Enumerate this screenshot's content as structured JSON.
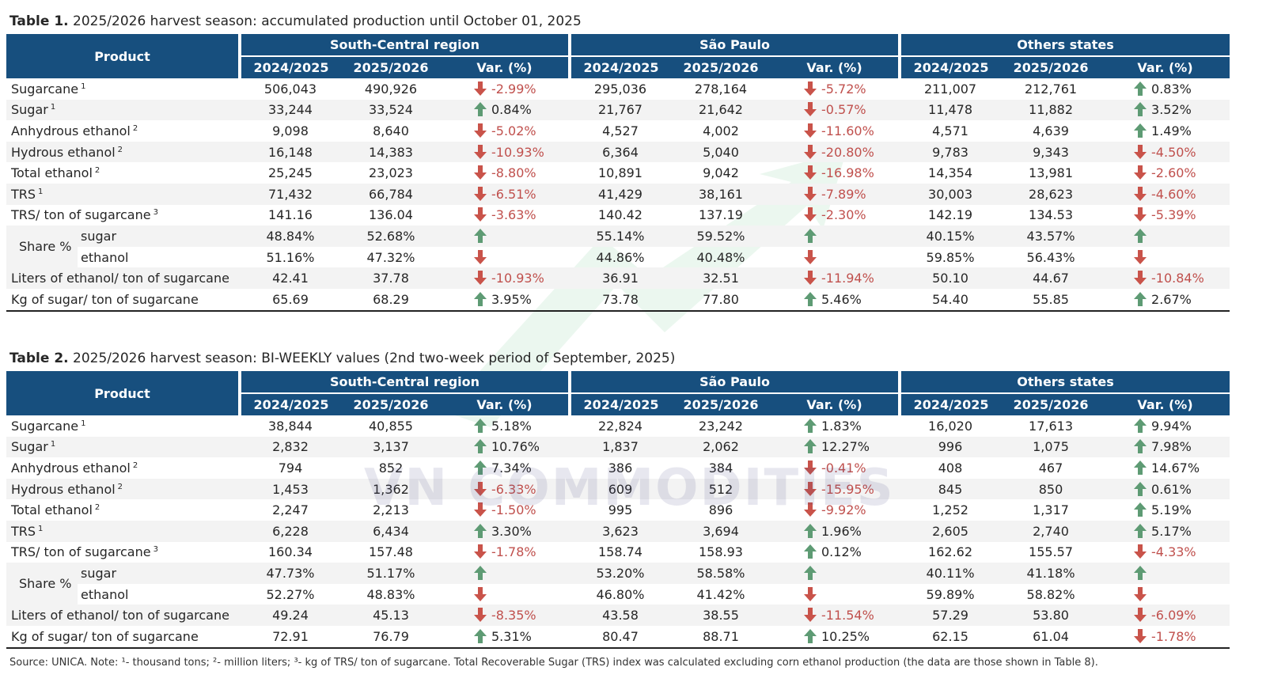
{
  "tables": [
    {
      "number": "Table 1.",
      "title": "2025/2026 harvest season: accumulated production until October 01, 2025",
      "header": {
        "product": "Product",
        "groups": [
          "South-Central region",
          "São Paulo",
          "Others states"
        ],
        "columns": [
          "2024/2025",
          "2025/2026",
          "Var. (%)"
        ]
      },
      "rows": [
        {
          "label": "Sugarcane",
          "sup": "1",
          "groups": [
            {
              "values": [
                "506,043",
                "490,926"
              ],
              "var": "-2.99%",
              "trend": "down"
            },
            {
              "values": [
                "295,036",
                "278,164"
              ],
              "var": "-5.72%",
              "trend": "down"
            },
            {
              "values": [
                "211,007",
                "212,761"
              ],
              "var": "0.83%",
              "trend": "up"
            }
          ]
        },
        {
          "label": "Sugar",
          "sup": "1",
          "groups": [
            {
              "values": [
                "33,244",
                "33,524"
              ],
              "var": "0.84%",
              "trend": "up"
            },
            {
              "values": [
                "21,767",
                "21,642"
              ],
              "var": "-0.57%",
              "trend": "down"
            },
            {
              "values": [
                "11,478",
                "11,882"
              ],
              "var": "3.52%",
              "trend": "up"
            }
          ]
        },
        {
          "label": "Anhydrous ethanol",
          "sup": "2",
          "groups": [
            {
              "values": [
                "9,098",
                "8,640"
              ],
              "var": "-5.02%",
              "trend": "down"
            },
            {
              "values": [
                "4,527",
                "4,002"
              ],
              "var": "-11.60%",
              "trend": "down"
            },
            {
              "values": [
                "4,571",
                "4,639"
              ],
              "var": "1.49%",
              "trend": "up"
            }
          ]
        },
        {
          "label": "Hydrous ethanol",
          "sup": "2",
          "groups": [
            {
              "values": [
                "16,148",
                "14,383"
              ],
              "var": "-10.93%",
              "trend": "down"
            },
            {
              "values": [
                "6,364",
                "5,040"
              ],
              "var": "-20.80%",
              "trend": "down"
            },
            {
              "values": [
                "9,783",
                "9,343"
              ],
              "var": "-4.50%",
              "trend": "down"
            }
          ]
        },
        {
          "label": "Total ethanol",
          "sup": "2",
          "groups": [
            {
              "values": [
                "25,245",
                "23,023"
              ],
              "var": "-8.80%",
              "trend": "down"
            },
            {
              "values": [
                "10,891",
                "9,042"
              ],
              "var": "-16.98%",
              "trend": "down"
            },
            {
              "values": [
                "14,354",
                "13,981"
              ],
              "var": "-2.60%",
              "trend": "down"
            }
          ]
        },
        {
          "label": "TRS",
          "sup": "1",
          "groups": [
            {
              "values": [
                "71,432",
                "66,784"
              ],
              "var": "-6.51%",
              "trend": "down"
            },
            {
              "values": [
                "41,429",
                "38,161"
              ],
              "var": "-7.89%",
              "trend": "down"
            },
            {
              "values": [
                "30,003",
                "28,623"
              ],
              "var": "-4.60%",
              "trend": "down"
            }
          ]
        },
        {
          "label": "TRS/ ton of sugarcane",
          "sup": "3",
          "groups": [
            {
              "values": [
                "141.16",
                "136.04"
              ],
              "var": "-3.63%",
              "trend": "down"
            },
            {
              "values": [
                "140.42",
                "137.19"
              ],
              "var": "-2.30%",
              "trend": "down"
            },
            {
              "values": [
                "142.19",
                "134.53"
              ],
              "var": "-5.39%",
              "trend": "down"
            }
          ]
        },
        {
          "label": "Share %",
          "sub": [
            {
              "label": "sugar",
              "groups": [
                {
                  "values": [
                    "48.84%",
                    "52.68%"
                  ],
                  "trend": "up"
                },
                {
                  "values": [
                    "55.14%",
                    "59.52%"
                  ],
                  "trend": "up"
                },
                {
                  "values": [
                    "40.15%",
                    "43.57%"
                  ],
                  "trend": "up"
                }
              ]
            },
            {
              "label": "ethanol",
              "groups": [
                {
                  "values": [
                    "51.16%",
                    "47.32%"
                  ],
                  "trend": "down"
                },
                {
                  "values": [
                    "44.86%",
                    "40.48%"
                  ],
                  "trend": "down"
                },
                {
                  "values": [
                    "59.85%",
                    "56.43%"
                  ],
                  "trend": "down"
                }
              ]
            }
          ]
        },
        {
          "label": "Liters of ethanol/ ton of sugarcane",
          "groups": [
            {
              "values": [
                "42.41",
                "37.78"
              ],
              "var": "-10.93%",
              "trend": "down"
            },
            {
              "values": [
                "36.91",
                "32.51"
              ],
              "var": "-11.94%",
              "trend": "down"
            },
            {
              "values": [
                "50.10",
                "44.67"
              ],
              "var": "-10.84%",
              "trend": "down"
            }
          ]
        },
        {
          "label": "Kg of sugar/ ton of sugarcane",
          "groups": [
            {
              "values": [
                "65.69",
                "68.29"
              ],
              "var": "3.95%",
              "trend": "up"
            },
            {
              "values": [
                "73.78",
                "77.80"
              ],
              "var": "5.46%",
              "trend": "up"
            },
            {
              "values": [
                "54.40",
                "55.85"
              ],
              "var": "2.67%",
              "trend": "up"
            }
          ]
        }
      ]
    },
    {
      "number": "Table 2.",
      "title": "2025/2026 harvest season: BI-WEEKLY values (2nd two-week period of September, 2025)",
      "header": {
        "product": "Product",
        "groups": [
          "South-Central region",
          "São Paulo",
          "Others states"
        ],
        "columns": [
          "2024/2025",
          "2025/2026",
          "Var. (%)"
        ]
      },
      "rows": [
        {
          "label": "Sugarcane",
          "sup": "1",
          "groups": [
            {
              "values": [
                "38,844",
                "40,855"
              ],
              "var": "5.18%",
              "trend": "up"
            },
            {
              "values": [
                "22,824",
                "23,242"
              ],
              "var": "1.83%",
              "trend": "up"
            },
            {
              "values": [
                "16,020",
                "17,613"
              ],
              "var": "9.94%",
              "trend": "up"
            }
          ]
        },
        {
          "label": "Sugar",
          "sup": "1",
          "groups": [
            {
              "values": [
                "2,832",
                "3,137"
              ],
              "var": "10.76%",
              "trend": "up"
            },
            {
              "values": [
                "1,837",
                "2,062"
              ],
              "var": "12.27%",
              "trend": "up"
            },
            {
              "values": [
                "996",
                "1,075"
              ],
              "var": "7.98%",
              "trend": "up"
            }
          ]
        },
        {
          "label": "Anhydrous ethanol",
          "sup": "2",
          "groups": [
            {
              "values": [
                "794",
                "852"
              ],
              "var": "7.34%",
              "trend": "up"
            },
            {
              "values": [
                "386",
                "384"
              ],
              "var": "-0.41%",
              "trend": "down"
            },
            {
              "values": [
                "408",
                "467"
              ],
              "var": "14.67%",
              "trend": "up"
            }
          ]
        },
        {
          "label": "Hydrous ethanol",
          "sup": "2",
          "groups": [
            {
              "values": [
                "1,453",
                "1,362"
              ],
              "var": "-6.33%",
              "trend": "down"
            },
            {
              "values": [
                "609",
                "512"
              ],
              "var": "-15.95%",
              "trend": "down"
            },
            {
              "values": [
                "845",
                "850"
              ],
              "var": "0.61%",
              "trend": "up"
            }
          ]
        },
        {
          "label": "Total ethanol",
          "sup": "2",
          "groups": [
            {
              "values": [
                "2,247",
                "2,213"
              ],
              "var": "-1.50%",
              "trend": "down"
            },
            {
              "values": [
                "995",
                "896"
              ],
              "var": "-9.92%",
              "trend": "down"
            },
            {
              "values": [
                "1,252",
                "1,317"
              ],
              "var": "5.19%",
              "trend": "up"
            }
          ]
        },
        {
          "label": "TRS",
          "sup": "1",
          "groups": [
            {
              "values": [
                "6,228",
                "6,434"
              ],
              "var": "3.30%",
              "trend": "up"
            },
            {
              "values": [
                "3,623",
                "3,694"
              ],
              "var": "1.96%",
              "trend": "up"
            },
            {
              "values": [
                "2,605",
                "2,740"
              ],
              "var": "5.17%",
              "trend": "up"
            }
          ]
        },
        {
          "label": "TRS/ ton of sugarcane",
          "sup": "3",
          "groups": [
            {
              "values": [
                "160.34",
                "157.48"
              ],
              "var": "-1.78%",
              "trend": "down"
            },
            {
              "values": [
                "158.74",
                "158.93"
              ],
              "var": "0.12%",
              "trend": "up"
            },
            {
              "values": [
                "162.62",
                "155.57"
              ],
              "var": "-4.33%",
              "trend": "down"
            }
          ]
        },
        {
          "label": "Share %",
          "sub": [
            {
              "label": "sugar",
              "groups": [
                {
                  "values": [
                    "47.73%",
                    "51.17%"
                  ],
                  "trend": "up"
                },
                {
                  "values": [
                    "53.20%",
                    "58.58%"
                  ],
                  "trend": "up"
                },
                {
                  "values": [
                    "40.11%",
                    "41.18%"
                  ],
                  "trend": "up"
                }
              ]
            },
            {
              "label": "ethanol",
              "groups": [
                {
                  "values": [
                    "52.27%",
                    "48.83%"
                  ],
                  "trend": "down"
                },
                {
                  "values": [
                    "46.80%",
                    "41.42%"
                  ],
                  "trend": "down"
                },
                {
                  "values": [
                    "59.89%",
                    "58.82%"
                  ],
                  "trend": "down"
                }
              ]
            }
          ]
        },
        {
          "label": "Liters of ethanol/ ton of sugarcane",
          "groups": [
            {
              "values": [
                "49.24",
                "45.13"
              ],
              "var": "-8.35%",
              "trend": "down"
            },
            {
              "values": [
                "43.58",
                "38.55"
              ],
              "var": "-11.54%",
              "trend": "down"
            },
            {
              "values": [
                "57.29",
                "53.80"
              ],
              "var": "-6.09%",
              "trend": "down"
            }
          ]
        },
        {
          "label": "Kg of sugar/ ton of sugarcane",
          "groups": [
            {
              "values": [
                "72.91",
                "76.79"
              ],
              "var": "5.31%",
              "trend": "up"
            },
            {
              "values": [
                "80.47",
                "88.71"
              ],
              "var": "10.25%",
              "trend": "up"
            },
            {
              "values": [
                "62.15",
                "61.04"
              ],
              "var": "-1.78%",
              "trend": "down"
            }
          ]
        }
      ]
    }
  ],
  "footnote": "Source: UNICA. Note: ¹- thousand tons; ²- million liters; ³- kg of TRS/ ton of sugarcane. Total Recoverable Sugar (TRS) index was calculated excluding corn ethanol production (the data are those shown in Table 8).",
  "watermark": "VN COMMODITIES"
}
